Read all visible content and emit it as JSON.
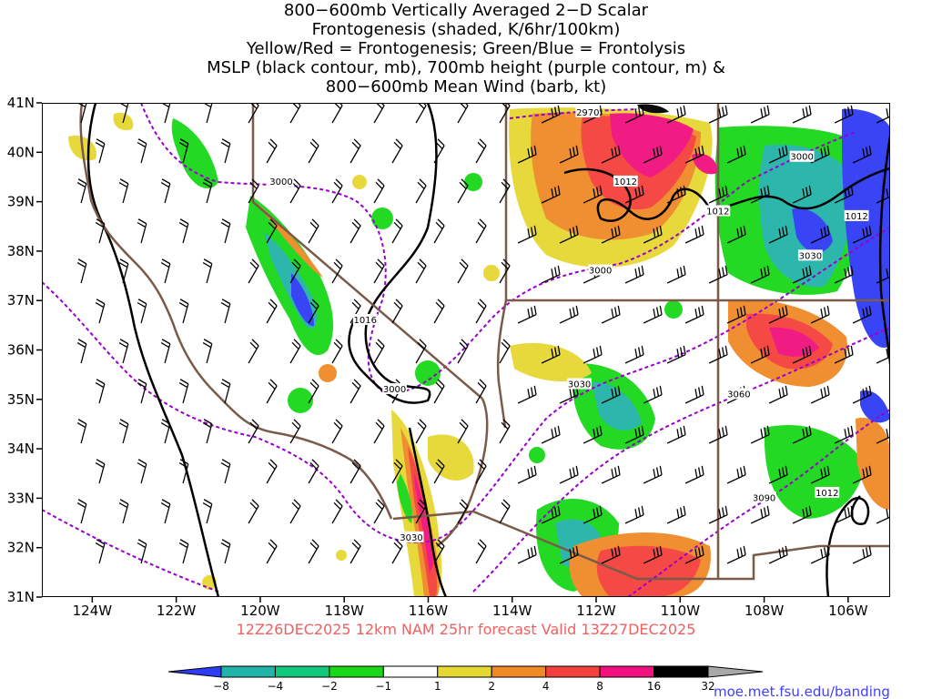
{
  "title": {
    "lines": [
      "800−600mb Vertically Averaged 2−D Scalar",
      "Frontogenesis (shaded, K/6hr/100km)",
      "Yellow/Red = Frontogenesis;  Green/Blue = Frontolysis",
      "MSLP (black contour, mb), 700mb height (purple contour, m) &",
      "800−600mb Mean Wind (barb, kt)"
    ]
  },
  "axes": {
    "lon_ticks": [
      {
        "value": -124,
        "label": "124W"
      },
      {
        "value": -122,
        "label": "122W"
      },
      {
        "value": -120,
        "label": "120W"
      },
      {
        "value": -118,
        "label": "118W"
      },
      {
        "value": -116,
        "label": "116W"
      },
      {
        "value": -114,
        "label": "114W"
      },
      {
        "value": -112,
        "label": "112W"
      },
      {
        "value": -110,
        "label": "110W"
      },
      {
        "value": -108,
        "label": "108W"
      },
      {
        "value": -106,
        "label": "106W"
      }
    ],
    "lat_ticks": [
      {
        "value": 31,
        "label": "31N"
      },
      {
        "value": 32,
        "label": "32N"
      },
      {
        "value": 33,
        "label": "33N"
      },
      {
        "value": 34,
        "label": "34N"
      },
      {
        "value": 35,
        "label": "35N"
      },
      {
        "value": 36,
        "label": "36N"
      },
      {
        "value": 37,
        "label": "37N"
      },
      {
        "value": 38,
        "label": "38N"
      },
      {
        "value": 39,
        "label": "39N"
      },
      {
        "value": 40,
        "label": "40N"
      },
      {
        "value": 41,
        "label": "41N"
      }
    ],
    "lon_range": [
      -125.2,
      -105.0
    ],
    "lat_range": [
      31,
      41
    ]
  },
  "colors": {
    "contour_mslp": "#000000",
    "contour_height": "#9900cc",
    "borders": "#7a5a48",
    "barbs": "#000000"
  },
  "colorbar": {
    "segments": [
      {
        "color": "#2f3cf5"
      },
      {
        "color": "#22b4a8"
      },
      {
        "color": "#12c87a"
      },
      {
        "color": "#18d818"
      },
      {
        "color": "#ffffff"
      },
      {
        "color": "#e6d832"
      },
      {
        "color": "#f08a28"
      },
      {
        "color": "#f4403c"
      },
      {
        "color": "#f0107e"
      },
      {
        "color": "#000000"
      },
      {
        "color": "#a8a8a8"
      }
    ],
    "labels": [
      "−8",
      "−4",
      "−2",
      "−1",
      "1",
      "2",
      "4",
      "8",
      "16",
      "32"
    ]
  },
  "contour_labels": [
    {
      "text": "3000",
      "lon": -119.5,
      "lat": 39.4
    },
    {
      "text": "3000",
      "lon": -111.9,
      "lat": 37.6
    },
    {
      "text": "3000",
      "lon": -116.8,
      "lat": 35.2
    },
    {
      "text": "3000",
      "lon": -107.1,
      "lat": 39.9
    },
    {
      "text": "3030",
      "lon": -116.4,
      "lat": 32.2
    },
    {
      "text": "3030",
      "lon": -112.4,
      "lat": 35.3
    },
    {
      "text": "3030",
      "lon": -106.9,
      "lat": 37.9
    },
    {
      "text": "3060",
      "lon": -108.6,
      "lat": 35.1
    },
    {
      "text": "3090",
      "lon": -108.0,
      "lat": 33.0
    },
    {
      "text": "2970",
      "lon": -112.2,
      "lat": 40.8
    },
    {
      "text": "1016",
      "lon": -117.5,
      "lat": 36.6
    },
    {
      "text": "1012",
      "lon": -111.3,
      "lat": 39.4
    },
    {
      "text": "1012",
      "lon": -109.1,
      "lat": 38.8
    },
    {
      "text": "1012",
      "lon": -105.8,
      "lat": 38.7
    },
    {
      "text": "1012",
      "lon": -106.5,
      "lat": 33.1
    }
  ],
  "footer": {
    "forecast": "12Z26DEC2025 12km NAM 25hr forecast Valid 13Z27DEC2025",
    "url": "moe.met.fsu.edu/banding"
  }
}
